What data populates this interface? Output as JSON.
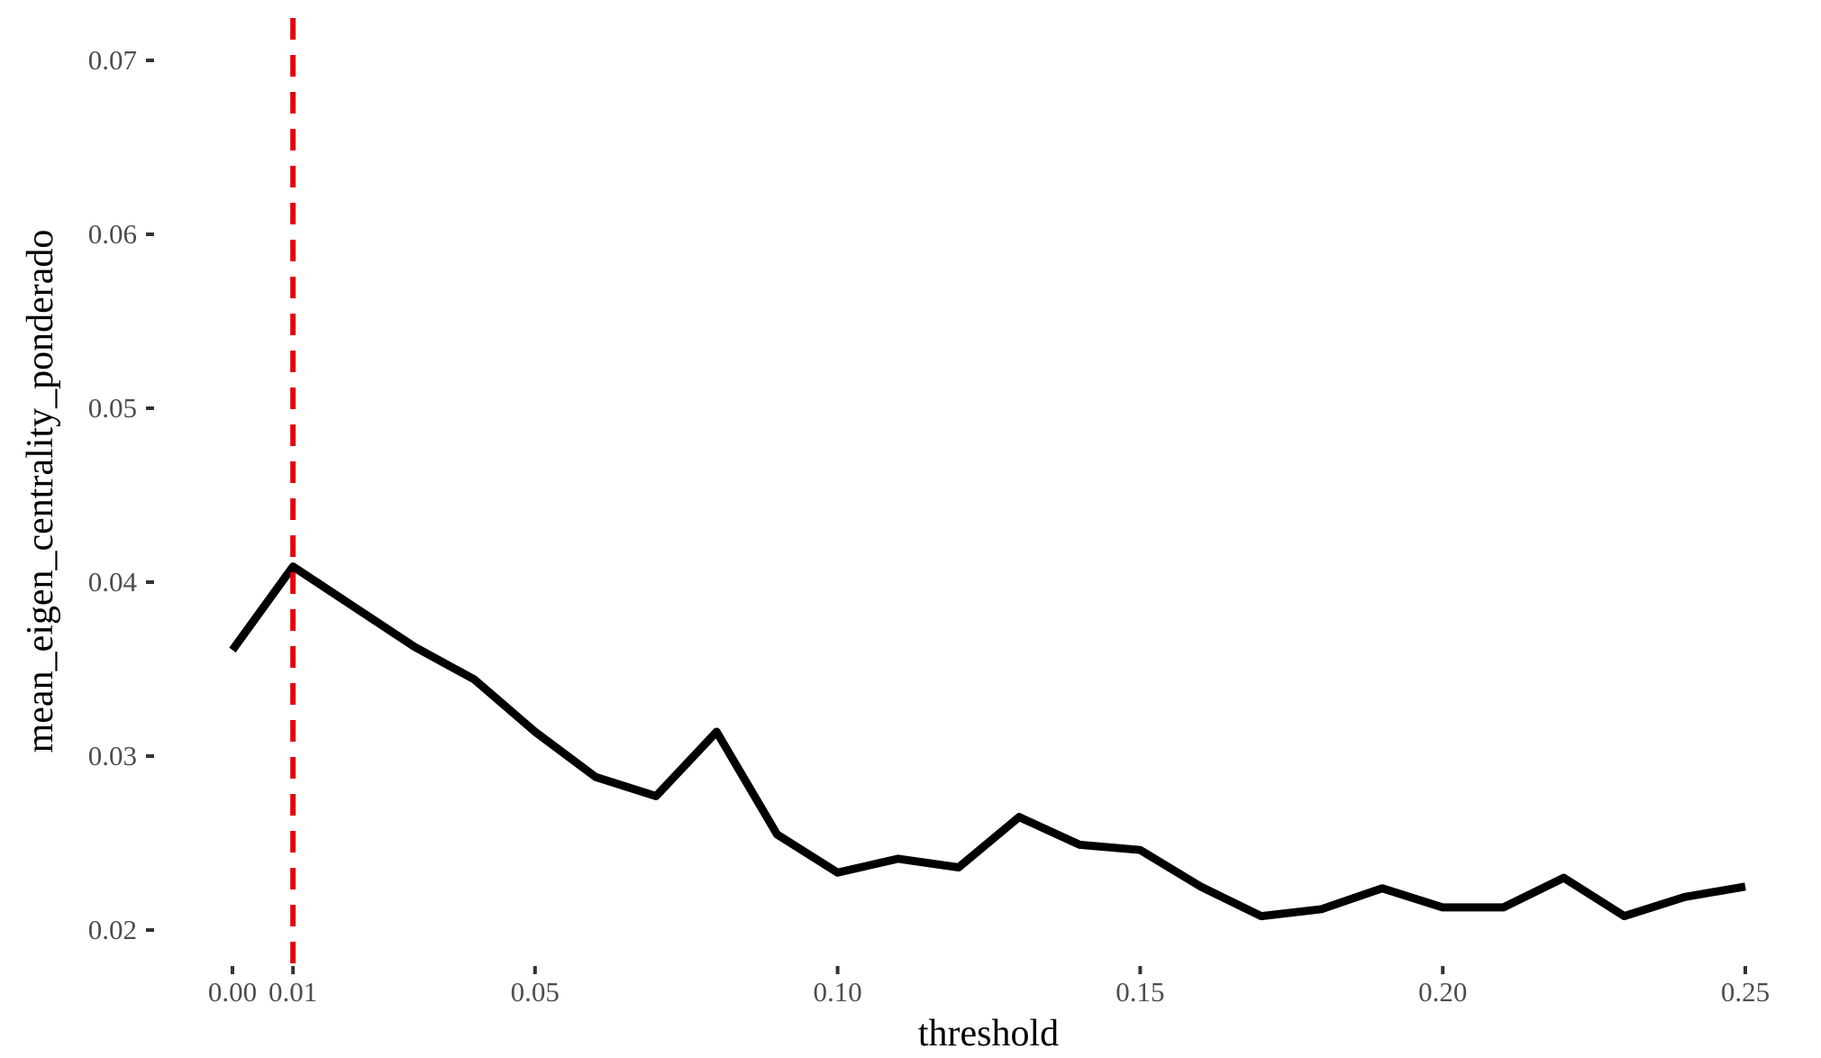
{
  "chart_data": {
    "type": "line",
    "title": "",
    "xlabel": "threshold",
    "ylabel": "mean_eigen_centrality_ponderado",
    "xlim": [
      -0.0025,
      0.2525
    ],
    "ylim": [
      0.0187,
      0.0723
    ],
    "x_ticks": [
      {
        "value": 0.0,
        "label": "0.00"
      },
      {
        "value": 0.01,
        "label": "0.01"
      },
      {
        "value": 0.05,
        "label": "0.05"
      },
      {
        "value": 0.1,
        "label": "0.10"
      },
      {
        "value": 0.15,
        "label": "0.15"
      },
      {
        "value": 0.2,
        "label": "0.20"
      },
      {
        "value": 0.25,
        "label": "0.25"
      }
    ],
    "y_ticks": [
      {
        "value": 0.02,
        "label": "0.02"
      },
      {
        "value": 0.03,
        "label": "0.03"
      },
      {
        "value": 0.04,
        "label": "0.04"
      },
      {
        "value": 0.05,
        "label": "0.05"
      },
      {
        "value": 0.06,
        "label": "0.06"
      },
      {
        "value": 0.07,
        "label": "0.07"
      }
    ],
    "grid": false,
    "series": [
      {
        "color": "#000000",
        "x": [
          0.0,
          0.01,
          0.02,
          0.03,
          0.04,
          0.05,
          0.06,
          0.07,
          0.08,
          0.09,
          0.1,
          0.11,
          0.12,
          0.13,
          0.14,
          0.15,
          0.16,
          0.17,
          0.18,
          0.19,
          0.2,
          0.21,
          0.22,
          0.23,
          0.24,
          0.25
        ],
        "values": [
          0.0361,
          0.0409,
          0.0386,
          0.0363,
          0.0344,
          0.0314,
          0.0288,
          0.0277,
          0.0314,
          0.0255,
          0.0233,
          0.0241,
          0.0236,
          0.0265,
          0.0249,
          0.0246,
          0.0225,
          0.0208,
          0.0212,
          0.0224,
          0.0213,
          0.0213,
          0.023,
          0.0208,
          0.0219,
          0.0225
        ]
      }
    ],
    "reference_line": {
      "orientation": "vertical",
      "x": 0.01,
      "color": "#e8000b",
      "style": "dashed"
    }
  }
}
